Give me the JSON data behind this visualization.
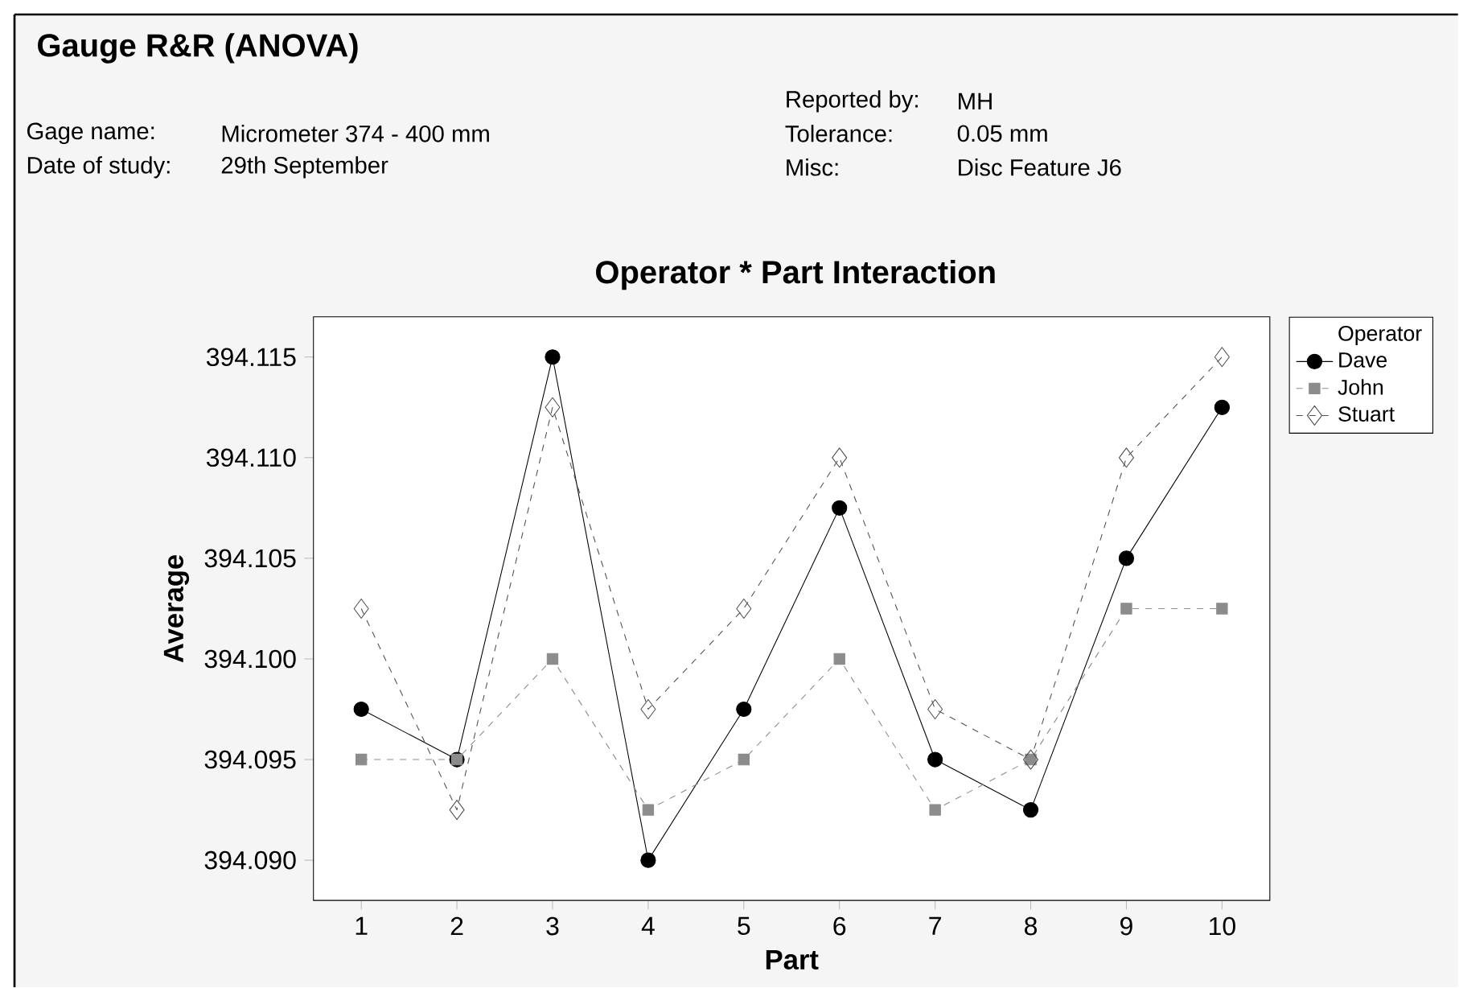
{
  "chart_data": {
    "type": "line",
    "title": "Gauge R&R (ANOVA)",
    "subtitle": "Operator * Part Interaction",
    "xlabel": "Part",
    "ylabel": "Average",
    "legend_title": "Operator",
    "legend": "right",
    "annotations": [
      "Gage name:",
      "Micrometer 374 - 400 mm",
      "Date of study:",
      "29th September",
      "Reported by:",
      "MH",
      "Tolerance:",
      "0.05 mm",
      "Misc:",
      "Disc Feature J6"
    ],
    "categories": [
      "1",
      "2",
      "3",
      "4",
      "5",
      "6",
      "7",
      "8",
      "9",
      "10"
    ],
    "ylim": [
      394.088,
      394.117
    ],
    "yticks": [
      {
        "value": 394.09,
        "label": "394.090"
      },
      394.095,
      {
        "value": 394.1,
        "label": "394.100"
      },
      394.105,
      {
        "value": 394.11,
        "label": "394.110"
      },
      394.115
    ],
    "series": [
      {
        "name": "Dave",
        "color": "#000000",
        "marker": "circle",
        "line_style": "solid",
        "values": [
          394.0975,
          394.095,
          394.115,
          394.09,
          394.0975,
          394.1075,
          394.095,
          394.0925,
          394.105,
          394.1125
        ]
      },
      {
        "name": "John",
        "color": "#8c8c8c",
        "marker": "square",
        "line_style": "dashed",
        "values": [
          394.095,
          394.095,
          394.1,
          394.0925,
          394.095,
          394.1,
          394.0925,
          394.095,
          394.1025,
          394.1025
        ]
      },
      {
        "name": "Stuart",
        "color": "#505050",
        "marker": "diamond",
        "line_style": "dashed",
        "values": [
          394.1025,
          394.0925,
          394.1125,
          394.0975,
          394.1025,
          394.11,
          394.0975,
          394.095,
          394.11,
          394.115
        ]
      }
    ]
  }
}
